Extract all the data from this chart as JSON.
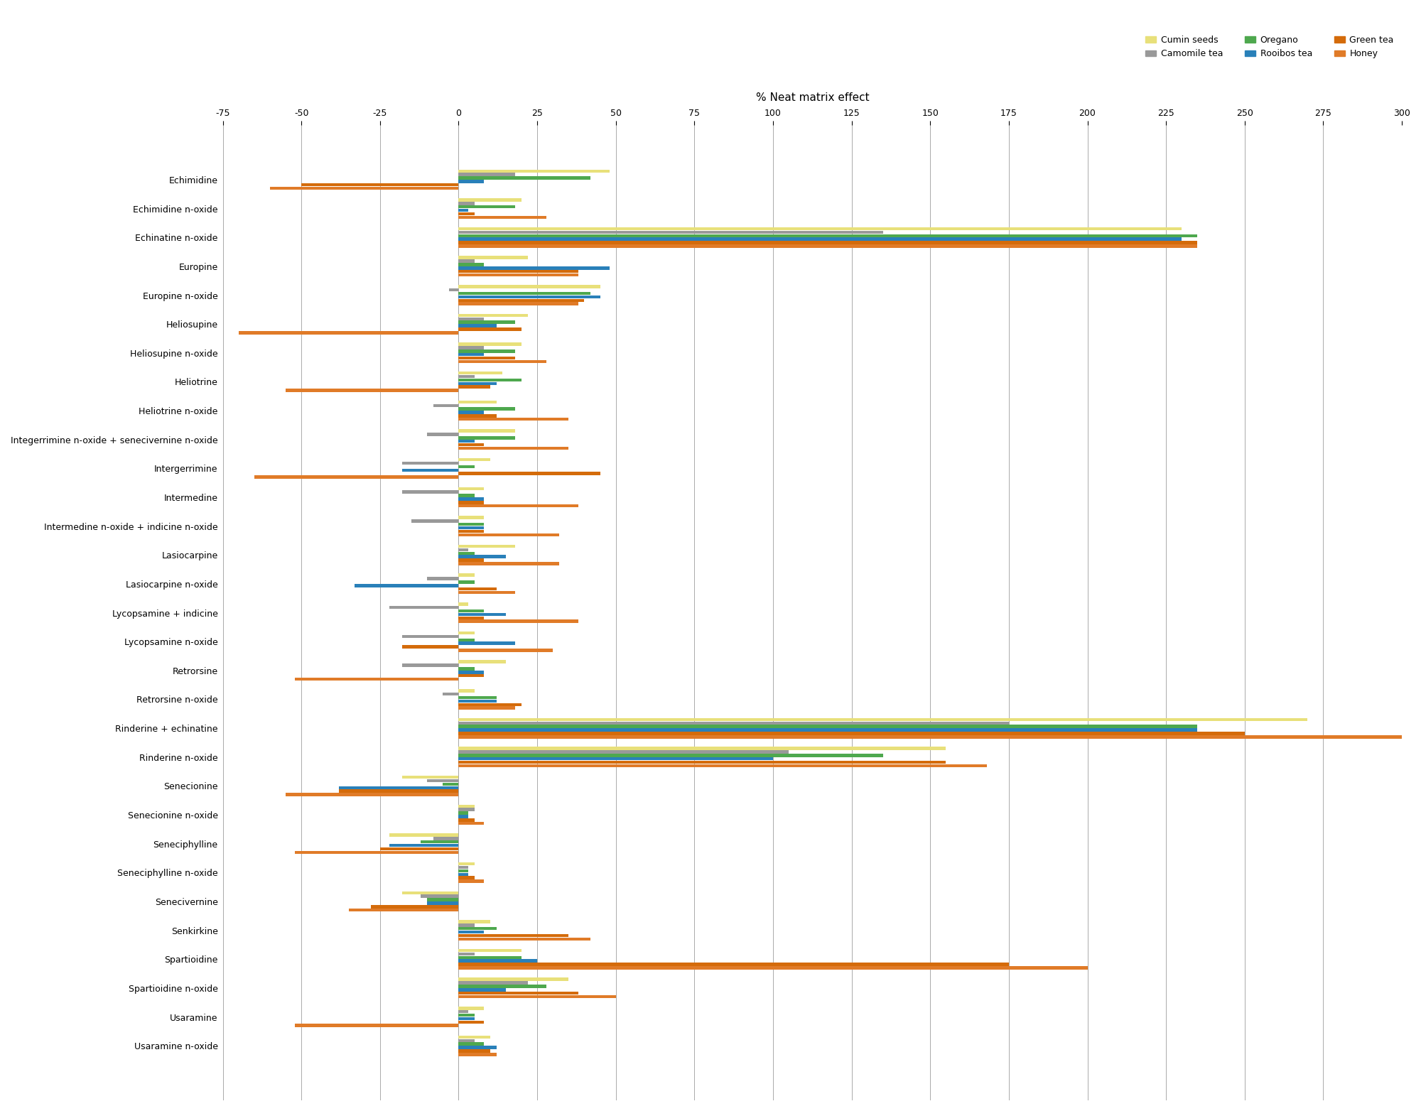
{
  "title": "% Neat matrix effect",
  "analytes": [
    "Echimidine",
    "Echimidine n-oxide",
    "Echinatine n-oxide",
    "Europine",
    "Europine n-oxide",
    "Heliosupine",
    "Heliosupine n-oxide",
    "Heliotrine",
    "Heliotrine n-oxide",
    "Integerrimine n-oxide + senecivernine n-oxide",
    "Intergerrimine",
    "Intermedine",
    "Intermedine n-oxide + indicine n-oxide",
    "Lasiocarpine",
    "Lasiocarpine n-oxide",
    "Lycopsamine + indicine",
    "Lycopsamine n-oxide",
    "Retrorsine",
    "Retrorsine n-oxide",
    "Rinderine + echinatine",
    "Rinderine n-oxide",
    "Senecionine",
    "Senecionine n-oxide",
    "Seneciphylline",
    "Seneciphylline n-oxide",
    "Senecivernine",
    "Senkirkine",
    "Spartioidine",
    "Spartioidine n-oxide",
    "Usaramine",
    "Usaramine n-oxide"
  ],
  "series_order": [
    "Cumin seeds",
    "Camomile tea",
    "Oregano",
    "Rooibos tea",
    "Green tea",
    "Honey"
  ],
  "series": {
    "Cumin seeds": {
      "color": "#e8e07a",
      "values": [
        48,
        20,
        230,
        22,
        45,
        22,
        20,
        14,
        12,
        18,
        10,
        8,
        8,
        18,
        5,
        3,
        5,
        15,
        5,
        270,
        155,
        -18,
        5,
        -22,
        5,
        -18,
        10,
        20,
        35,
        8,
        10
      ]
    },
    "Camomile tea": {
      "color": "#999999",
      "values": [
        18,
        5,
        135,
        5,
        -3,
        8,
        8,
        5,
        -8,
        -10,
        -18,
        -18,
        -15,
        3,
        -10,
        -22,
        -18,
        -18,
        -5,
        175,
        105,
        -10,
        5,
        -8,
        3,
        -12,
        5,
        5,
        22,
        3,
        5
      ]
    },
    "Oregano": {
      "color": "#4ea84e",
      "values": [
        42,
        18,
        235,
        8,
        42,
        18,
        18,
        20,
        18,
        18,
        5,
        5,
        8,
        5,
        5,
        8,
        5,
        5,
        12,
        235,
        135,
        -5,
        3,
        -12,
        3,
        -10,
        12,
        20,
        28,
        5,
        8
      ]
    },
    "Rooibos tea": {
      "color": "#2980b9",
      "values": [
        8,
        3,
        230,
        48,
        45,
        12,
        8,
        12,
        8,
        5,
        -18,
        8,
        8,
        15,
        -33,
        15,
        18,
        8,
        12,
        235,
        100,
        -38,
        3,
        -22,
        3,
        -10,
        8,
        25,
        15,
        5,
        12
      ]
    },
    "Green tea": {
      "color": "#d46b0a",
      "values": [
        -50,
        5,
        235,
        38,
        40,
        20,
        18,
        10,
        12,
        8,
        45,
        8,
        8,
        8,
        12,
        8,
        -18,
        8,
        20,
        250,
        155,
        -38,
        5,
        -25,
        5,
        -28,
        35,
        175,
        38,
        8,
        10
      ]
    },
    "Honey": {
      "color": "#e07b28",
      "values": [
        -60,
        28,
        235,
        38,
        38,
        -70,
        28,
        -55,
        35,
        35,
        -65,
        38,
        32,
        32,
        18,
        38,
        30,
        -52,
        18,
        300,
        168,
        -55,
        8,
        -52,
        8,
        -35,
        42,
        200,
        50,
        -52,
        12
      ]
    }
  },
  "xlim": [
    -75,
    300
  ],
  "xticks": [
    -75,
    -50,
    -25,
    0,
    25,
    50,
    75,
    100,
    125,
    150,
    175,
    200,
    225,
    250,
    275,
    300
  ],
  "bar_height": 0.12,
  "figsize": [
    20.0,
    15.64
  ]
}
